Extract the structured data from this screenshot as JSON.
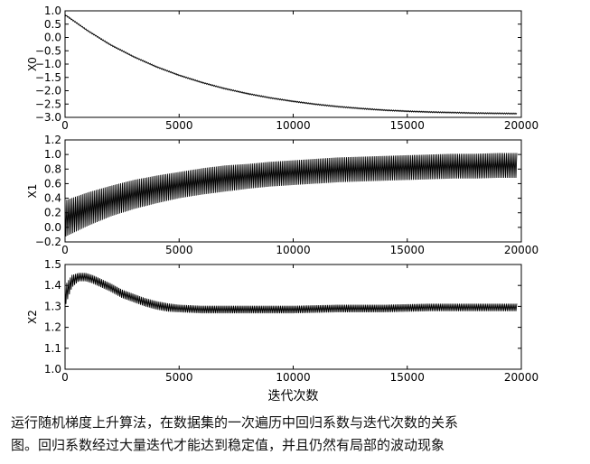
{
  "chart_data": [
    {
      "type": "line",
      "ylabel": "X0",
      "xlim": [
        0,
        20000
      ],
      "ylim": [
        -3.0,
        1.0
      ],
      "xticks": [
        "0",
        "5000",
        "10000",
        "15000",
        "20000"
      ],
      "yticks": [
        "1.0",
        "0.5",
        "0.0",
        "−0.5",
        "−1.0",
        "−1.5",
        "−2.0",
        "−2.5",
        "−3.0"
      ],
      "ytick_values": [
        1.0,
        0.5,
        0.0,
        -0.5,
        -1.0,
        -1.5,
        -2.0,
        -2.5,
        -3.0
      ],
      "x": [
        0,
        1000,
        2000,
        3000,
        4000,
        5000,
        6000,
        7000,
        8000,
        9000,
        10000,
        11000,
        12000,
        13000,
        14000,
        15000,
        16000,
        17000,
        18000,
        19000,
        19800
      ],
      "center": [
        0.85,
        0.25,
        -0.28,
        -0.72,
        -1.1,
        -1.42,
        -1.69,
        -1.92,
        -2.11,
        -2.27,
        -2.4,
        -2.51,
        -2.6,
        -2.67,
        -2.73,
        -2.77,
        -2.8,
        -2.82,
        -2.84,
        -2.85,
        -2.86
      ],
      "amplitude": [
        0.02,
        0.02,
        0.02,
        0.02,
        0.02,
        0.02,
        0.02,
        0.02,
        0.02,
        0.02,
        0.02,
        0.02,
        0.02,
        0.02,
        0.02,
        0.02,
        0.02,
        0.02,
        0.02,
        0.02,
        0.02
      ]
    },
    {
      "type": "line",
      "ylabel": "X1",
      "xlim": [
        0,
        20000
      ],
      "ylim": [
        -0.2,
        1.2
      ],
      "xticks": [
        "0",
        "5000",
        "10000",
        "15000",
        "20000"
      ],
      "yticks": [
        "1.2",
        "1.0",
        "0.8",
        "0.6",
        "0.4",
        "0.2",
        "0.0",
        "−0.2"
      ],
      "ytick_values": [
        1.2,
        1.0,
        0.8,
        0.6,
        0.4,
        0.2,
        0.0,
        -0.2
      ],
      "x": [
        0,
        1000,
        2000,
        3000,
        4000,
        5000,
        6000,
        7000,
        8000,
        9000,
        10000,
        11000,
        12000,
        13000,
        14000,
        15000,
        16000,
        17000,
        18000,
        19000,
        19800
      ],
      "center": [
        0.12,
        0.25,
        0.36,
        0.45,
        0.52,
        0.58,
        0.63,
        0.67,
        0.7,
        0.73,
        0.75,
        0.77,
        0.79,
        0.8,
        0.81,
        0.82,
        0.83,
        0.84,
        0.84,
        0.85,
        0.85
      ],
      "amplitude": [
        0.25,
        0.23,
        0.21,
        0.2,
        0.19,
        0.18,
        0.18,
        0.18,
        0.17,
        0.17,
        0.17,
        0.17,
        0.17,
        0.17,
        0.17,
        0.17,
        0.17,
        0.17,
        0.17,
        0.17,
        0.17
      ]
    },
    {
      "type": "line",
      "ylabel": "X2",
      "xlabel": "迭代次数",
      "xlim": [
        0,
        20000
      ],
      "ylim": [
        1.0,
        1.5
      ],
      "xticks": [
        "0",
        "5000",
        "10000",
        "15000",
        "20000"
      ],
      "yticks": [
        "1.5",
        "1.4",
        "1.3",
        "1.2",
        "1.1",
        "1.0"
      ],
      "ytick_values": [
        1.5,
        1.4,
        1.3,
        1.2,
        1.1,
        1.0
      ],
      "x": [
        0,
        300,
        600,
        900,
        1200,
        1600,
        2000,
        2500,
        3000,
        3500,
        4000,
        4500,
        5000,
        6000,
        7000,
        8000,
        10000,
        12000,
        14000,
        16000,
        18000,
        19800
      ],
      "center": [
        1.35,
        1.42,
        1.44,
        1.44,
        1.43,
        1.41,
        1.39,
        1.36,
        1.34,
        1.32,
        1.305,
        1.295,
        1.29,
        1.285,
        1.285,
        1.285,
        1.285,
        1.29,
        1.29,
        1.295,
        1.295,
        1.295
      ],
      "amplitude": [
        0.05,
        0.03,
        0.02,
        0.02,
        0.02,
        0.02,
        0.02,
        0.02,
        0.02,
        0.02,
        0.02,
        0.02,
        0.018,
        0.018,
        0.018,
        0.018,
        0.018,
        0.018,
        0.018,
        0.018,
        0.018,
        0.018
      ]
    }
  ],
  "caption": {
    "line1": "运行随机梯度上升算法，在数据集的一次遍历中回归系数与迭代次数的关系",
    "line2": "图。回归系数经过大量迭代才能达到稳定值，并且仍然有局部的波动现象"
  }
}
